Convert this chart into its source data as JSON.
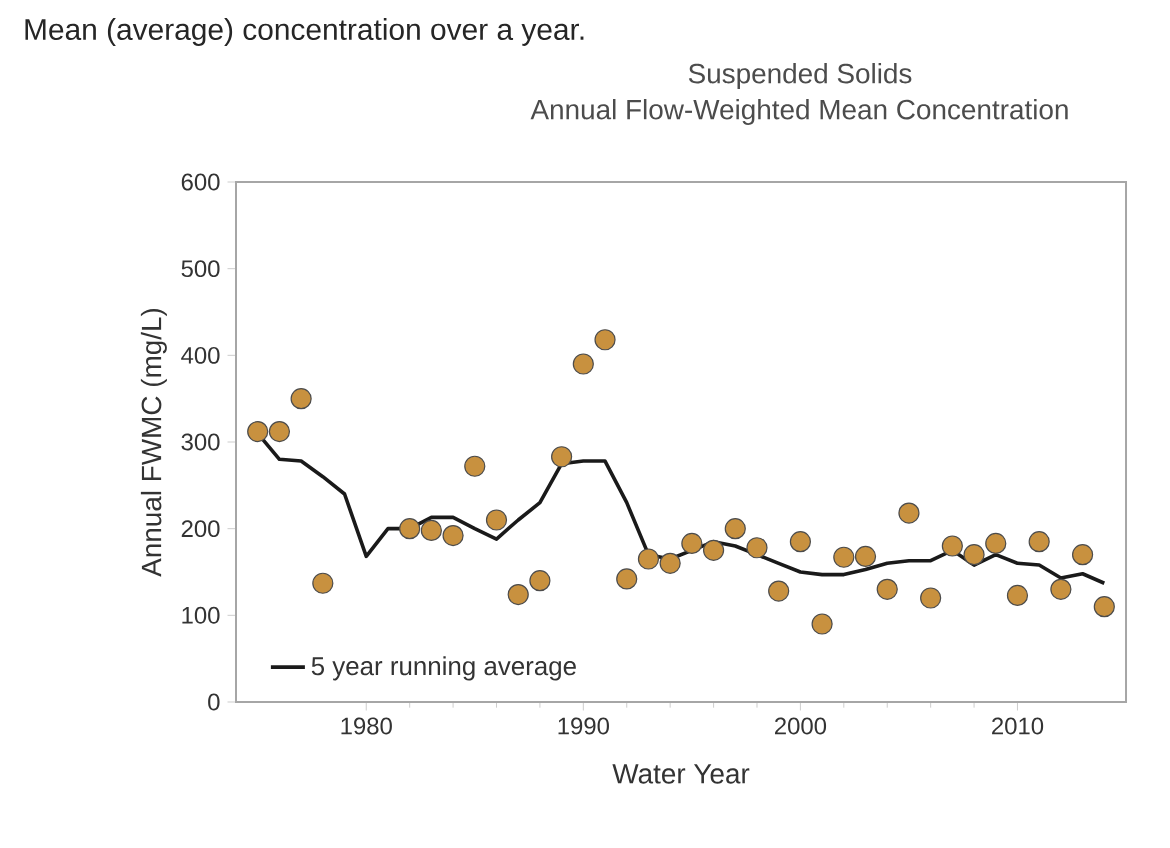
{
  "chart_data": {
    "type": "scatter",
    "title": "Suspended Solids",
    "subtitle": "Annual Flow-Weighted Mean Concentration",
    "annotations": [
      "Mean (average) concentration over a year."
    ],
    "xlabel": "Water Year",
    "ylabel": "Annual FWMC (mg/L)",
    "xlim": [
      1974,
      2015
    ],
    "xticks": [
      1980,
      1990,
      2000,
      2010
    ],
    "ylim": [
      0,
      600
    ],
    "yticks": [
      0,
      100,
      200,
      300,
      400,
      500,
      600
    ],
    "legend": "bottom left",
    "grid": false,
    "series": [
      {
        "marker": "circle",
        "color": "#c8913f",
        "x": [
          1975,
          1976,
          1977,
          1978,
          1982,
          1983,
          1984,
          1985,
          1986,
          1987,
          1988,
          1989,
          1990,
          1991,
          1992,
          1993,
          1994,
          1995,
          1996,
          1997,
          1998,
          1999,
          2000,
          2001,
          2002,
          2003,
          2004,
          2005,
          2006,
          2007,
          2008,
          2009,
          2010,
          2011,
          2012,
          2013,
          2014
        ],
        "values": [
          312,
          312,
          350,
          137,
          200,
          198,
          192,
          272,
          210,
          124,
          140,
          283,
          390,
          418,
          142,
          165,
          160,
          183,
          175,
          200,
          178,
          128,
          185,
          90,
          167,
          168,
          130,
          218,
          120,
          180,
          170,
          183,
          123,
          185,
          130,
          170,
          110
        ]
      },
      {
        "type": "line",
        "name": "5 year running average",
        "color": "#1a1a1a",
        "marker": "none",
        "line_style": "solid",
        "x": [
          1975,
          1976,
          1977,
          1978,
          1979,
          1980,
          1981,
          1982,
          1983,
          1984,
          1985,
          1986,
          1987,
          1988,
          1989,
          1990,
          1991,
          1992,
          1993,
          1994,
          1995,
          1996,
          1997,
          1998,
          1999,
          2000,
          2001,
          2002,
          2003,
          2004,
          2005,
          2006,
          2007,
          2008,
          2009,
          2010,
          2011,
          2012,
          2013,
          2014
        ],
        "values": [
          310,
          280,
          278,
          260,
          240,
          168,
          200,
          200,
          213,
          213,
          200,
          188,
          210,
          230,
          275,
          278,
          278,
          230,
          170,
          165,
          175,
          185,
          180,
          170,
          160,
          150,
          147,
          147,
          153,
          160,
          163,
          163,
          175,
          158,
          170,
          160,
          158,
          143,
          148,
          137
        ]
      }
    ]
  }
}
